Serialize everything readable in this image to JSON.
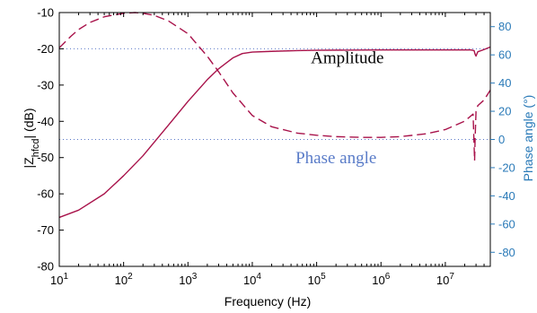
{
  "chart_data": {
    "type": "line",
    "xlabel": "Frequency (Hz)",
    "ylabel_main": "|Z",
    "ylabel_sub": "hfcd",
    "ylabel_tail": "| (dB)",
    "ylabel_right": "Phase angle (°)",
    "x_scale": "log",
    "xlim": [
      10,
      50000000
    ],
    "ylim": [
      -80,
      -10
    ],
    "ylim_right": [
      -90,
      90
    ],
    "x_ticks": [
      {
        "value": 10,
        "base": "10",
        "exp": "1"
      },
      {
        "value": 100,
        "base": "10",
        "exp": "2"
      },
      {
        "value": 1000,
        "base": "10",
        "exp": "3"
      },
      {
        "value": 10000,
        "base": "10",
        "exp": "4"
      },
      {
        "value": 100000,
        "base": "10",
        "exp": "5"
      },
      {
        "value": 1000000,
        "base": "10",
        "exp": "6"
      },
      {
        "value": 10000000,
        "base": "10",
        "exp": "7"
      }
    ],
    "y_ticks": [
      "-10",
      "-20",
      "-30",
      "-40",
      "-50",
      "-60",
      "-70",
      "-80"
    ],
    "y_ticks_right": [
      "80",
      "60",
      "40",
      "20",
      "0",
      "-20",
      "-40",
      "-60",
      "-80"
    ],
    "reference_lines": [
      {
        "axis": "left",
        "y": -20
      },
      {
        "axis": "right",
        "y": 0
      }
    ],
    "annotations": [
      {
        "text": "Amplitude",
        "x": 300000,
        "y": -24
      },
      {
        "text": "Phase angle",
        "x": 200000,
        "y": -51.5
      }
    ],
    "series": [
      {
        "axis": "left",
        "style": "solid",
        "x": [
          10,
          20,
          50,
          100,
          200,
          500,
          1000,
          2000,
          3000,
          5000,
          7000,
          10000,
          20000,
          50000,
          100000,
          1000000,
          10000000,
          25000000,
          28000000,
          29000000,
          30000000,
          32000000,
          40000000,
          50000000
        ],
        "y": [
          -66.5,
          -64.5,
          -60.0,
          -55.0,
          -49.5,
          -41.0,
          -34.5,
          -28.5,
          -25.5,
          -22.5,
          -21.3,
          -20.9,
          -20.7,
          -20.5,
          -20.4,
          -20.3,
          -20.3,
          -20.3,
          -20.5,
          -21.5,
          -22.0,
          -20.8,
          -20.2,
          -19.5
        ]
      },
      {
        "axis": "right",
        "style": "dashed",
        "x": [
          10,
          15,
          20,
          30,
          50,
          100,
          150,
          200,
          300,
          500,
          1000,
          2000,
          3000,
          5000,
          10000,
          20000,
          50000,
          100000,
          200000,
          500000,
          1000000,
          2000000,
          5000000,
          10000000,
          20000000,
          27000000,
          28500000,
          29000000,
          30000000,
          32000000,
          40000000,
          50000000
        ],
        "y": [
          65,
          73,
          78,
          83,
          87,
          89.5,
          90,
          89.5,
          88,
          84,
          75,
          59,
          48,
          33,
          17,
          9,
          4.5,
          3,
          2,
          1.5,
          1.5,
          2,
          4,
          7,
          13,
          18,
          -15,
          0,
          20,
          24,
          28,
          35
        ]
      }
    ]
  }
}
